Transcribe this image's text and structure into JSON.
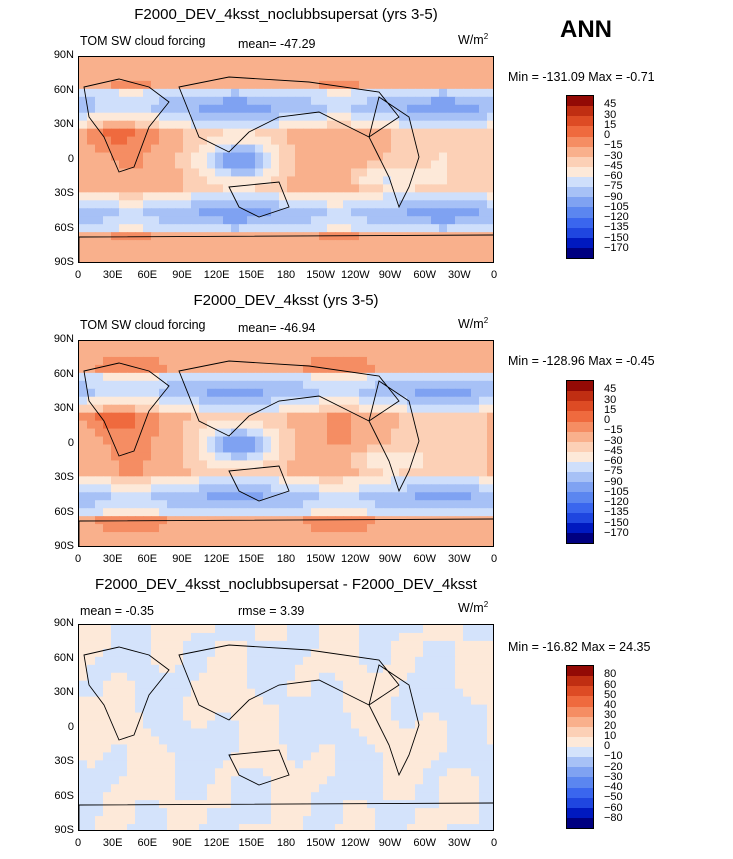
{
  "season": "ANN",
  "units_prefix": "W/m",
  "units_exp": "2",
  "lat_ticks": [
    "90N",
    "60N",
    "30N",
    "0",
    "30S",
    "60S",
    "90S"
  ],
  "lon_ticks": [
    "0",
    "30E",
    "60E",
    "90E",
    "120E",
    "150E",
    "180",
    "150W",
    "120W",
    "90W",
    "60W",
    "30W",
    "0"
  ],
  "palette_abs": [
    "#000080",
    "#0019c0",
    "#1f46e0",
    "#3a66ee",
    "#5b86f0",
    "#7fa2f2",
    "#a7c1f6",
    "#cfdffb",
    "#fde9d9",
    "#fcd0b6",
    "#f9b08c",
    "#f58d63",
    "#ef6a3e",
    "#dd4b24",
    "#c02e12",
    "#930a05"
  ],
  "palette_diff": [
    "#000080",
    "#0019c0",
    "#1f46e0",
    "#3a66ee",
    "#5b86f0",
    "#7fa2f2",
    "#a7c1f6",
    "#d4e3fb",
    "#fde9d9",
    "#fcd0b6",
    "#f9b08c",
    "#f58d63",
    "#ef6a3e",
    "#dd4b24",
    "#c02e12",
    "#930a05"
  ],
  "panels": [
    {
      "title": "F2000_DEV_4ksst_noclubbsupersat (yrs 3-5)",
      "left_label": "TOM SW cloud forcing",
      "mid_label": "mean= -47.29",
      "minmax": "Min = -131.09 Max =  -0.71",
      "levels": [
        "45",
        "30",
        "15",
        "0",
        "−15",
        "−30",
        "−45",
        "−60",
        "−75",
        "−90",
        "−105",
        "−120",
        "−135",
        "−150",
        "−170"
      ]
    },
    {
      "title": "F2000_DEV_4ksst (yrs 3-5)",
      "left_label": "TOM SW cloud forcing",
      "mid_label": "mean= -46.94",
      "minmax": "Min = -128.96 Max =  -0.45",
      "levels": [
        "45",
        "30",
        "15",
        "0",
        "−15",
        "−30",
        "−45",
        "−60",
        "−75",
        "−90",
        "−105",
        "−120",
        "−135",
        "−150",
        "−170"
      ]
    },
    {
      "title": "F2000_DEV_4ksst_noclubbsupersat - F2000_DEV_4ksst",
      "left_label": "mean =  -0.35",
      "mid_label": "rmse =   3.39",
      "minmax": "Min = -16.82 Max =  24.35",
      "levels": [
        "80",
        "60",
        "50",
        "40",
        "30",
        "20",
        "10",
        "0",
        "−10",
        "−20",
        "−30",
        "−40",
        "−50",
        "−60",
        "−80"
      ]
    }
  ]
}
